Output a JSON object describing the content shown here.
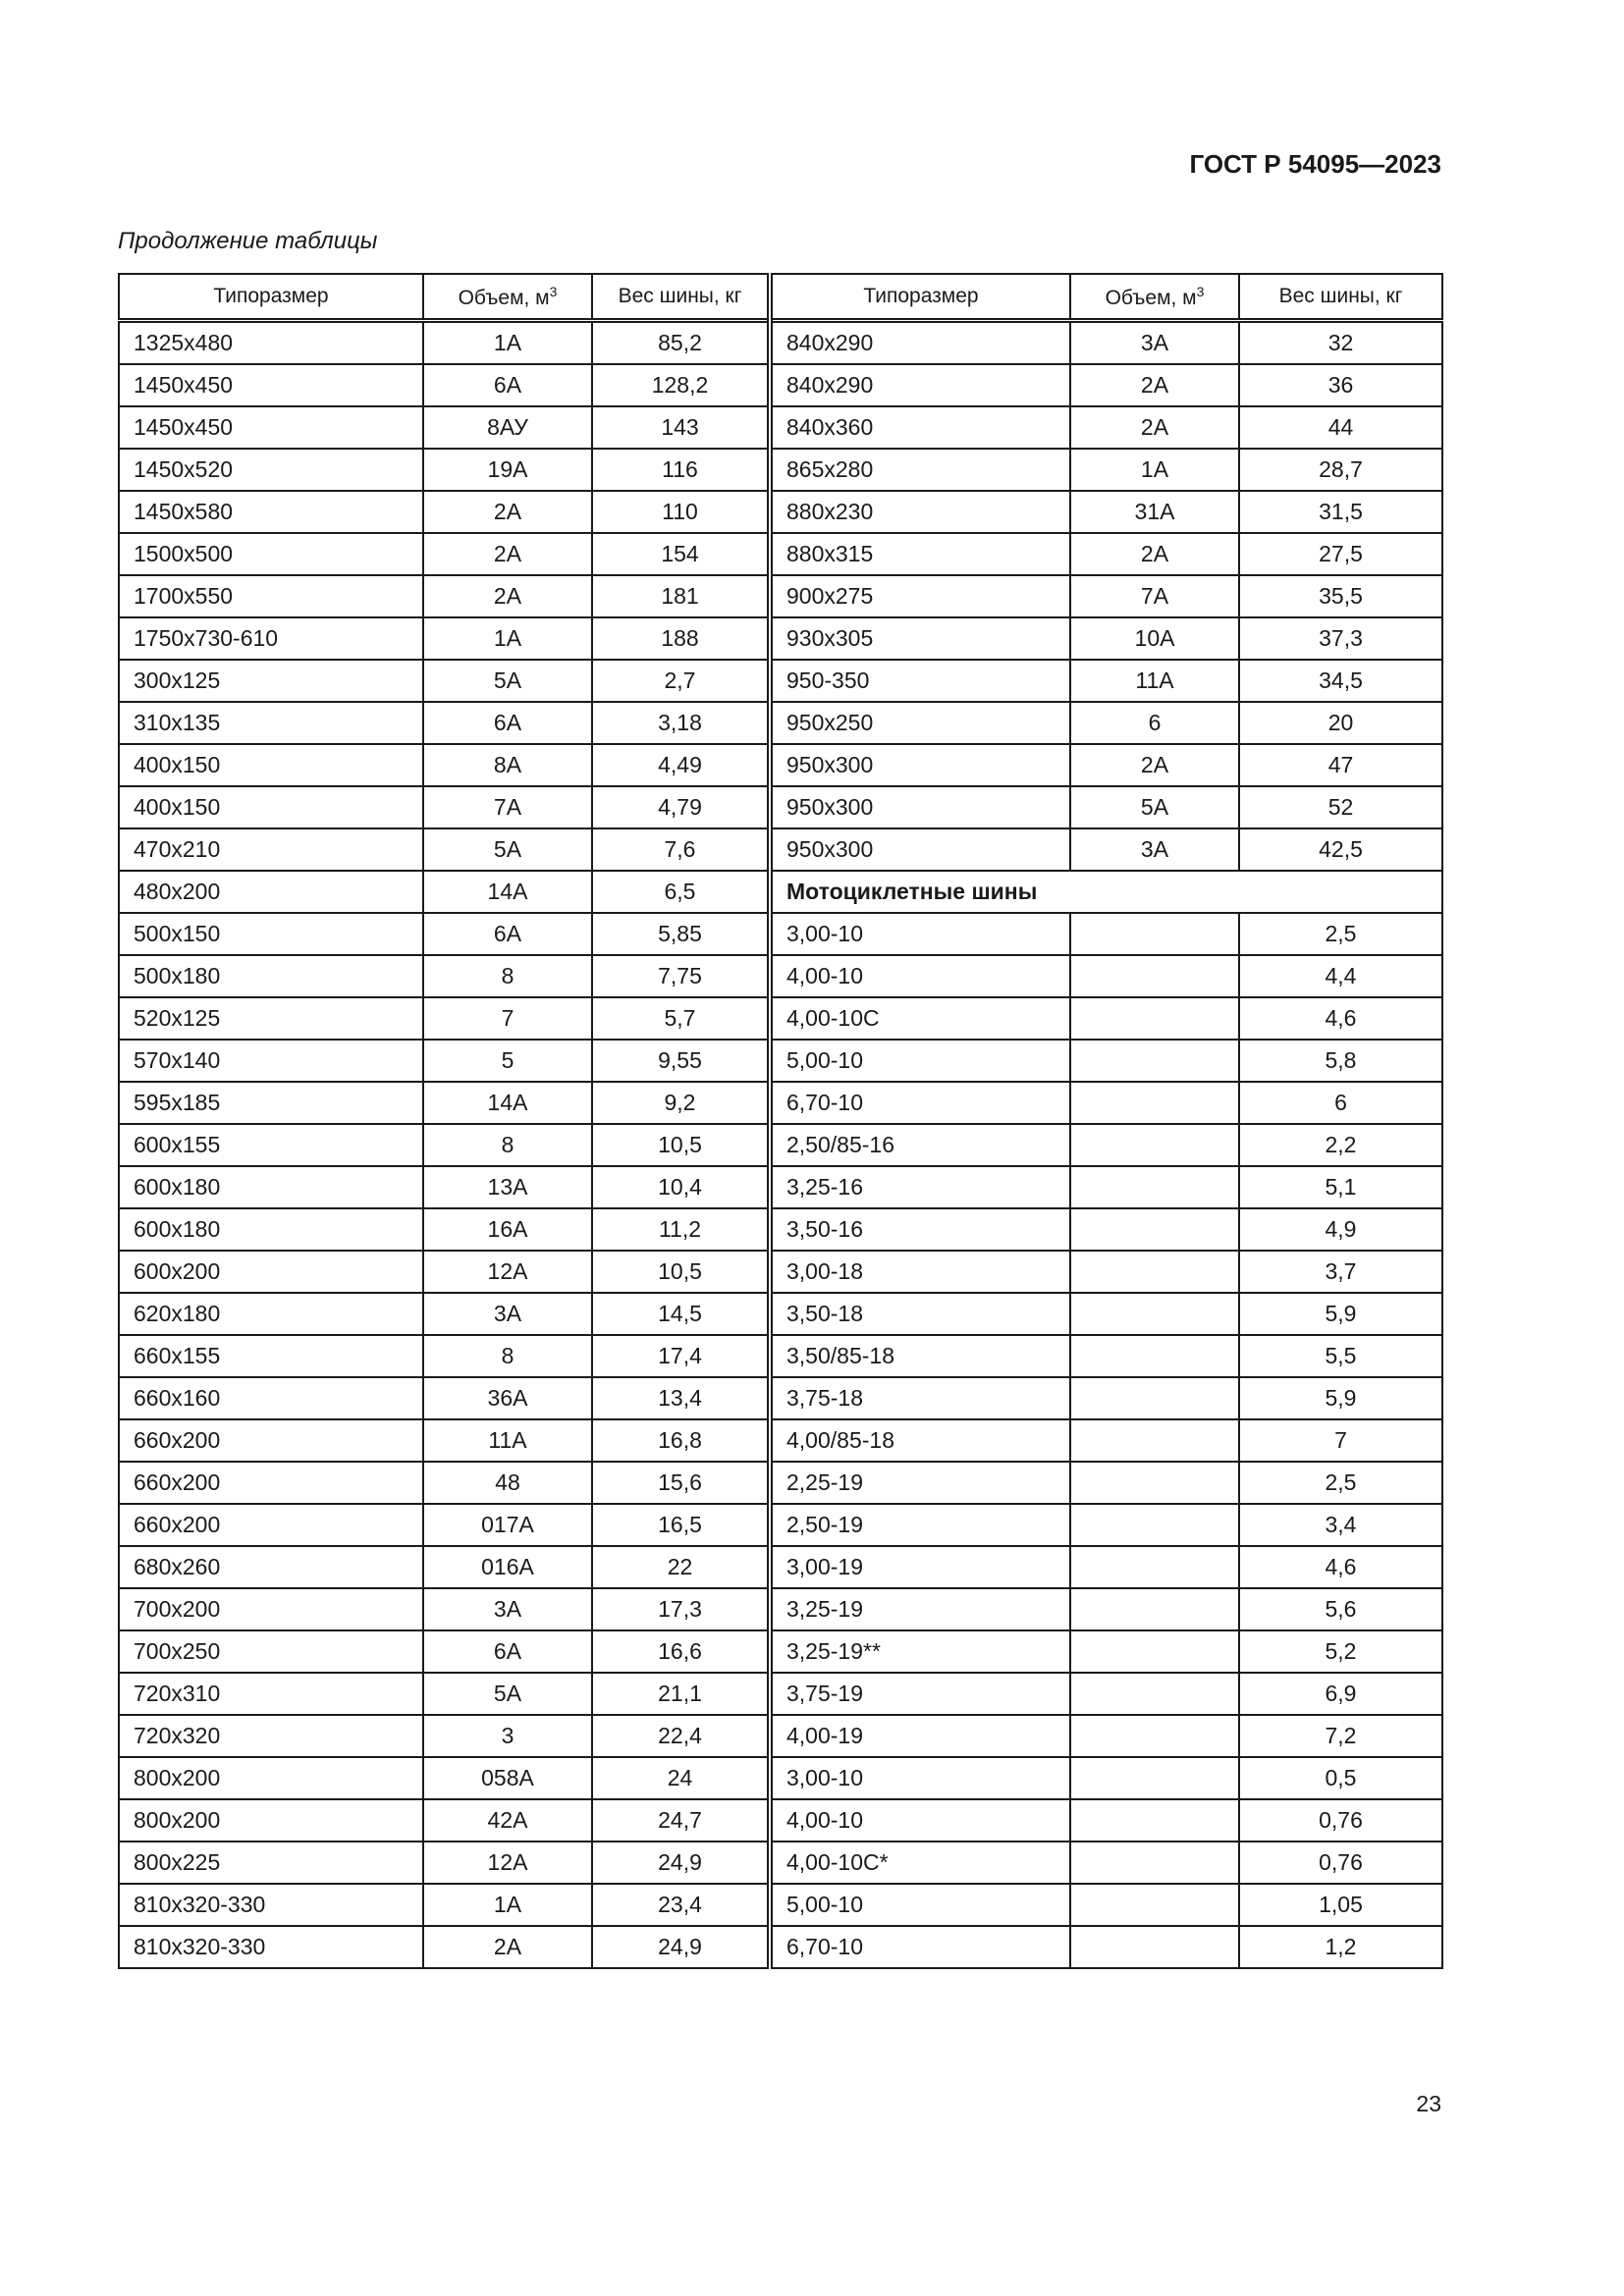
{
  "header": {
    "doc_code": "ГОСТ Р 54095—2023",
    "caption": "Продолжение таблицы"
  },
  "columns": {
    "size": "Типоразмер",
    "volume": "Объем, м",
    "volume_sup": "3",
    "weight": "Вес шины, кг"
  },
  "rows": [
    {
      "l": [
        "1325x480",
        "1А",
        "85,2"
      ],
      "r": [
        "840x290",
        "3А",
        "32"
      ]
    },
    {
      "l": [
        "1450x450",
        "6А",
        "128,2"
      ],
      "r": [
        "840x290",
        "2А",
        "36"
      ]
    },
    {
      "l": [
        "1450x450",
        "8АУ",
        "143"
      ],
      "r": [
        "840x360",
        "2А",
        "44"
      ]
    },
    {
      "l": [
        "1450x520",
        "19А",
        "116"
      ],
      "r": [
        "865x280",
        "1А",
        "28,7"
      ]
    },
    {
      "l": [
        "1450x580",
        "2А",
        "110"
      ],
      "r": [
        "880x230",
        "31А",
        "31,5"
      ]
    },
    {
      "l": [
        "1500x500",
        "2А",
        "154"
      ],
      "r": [
        "880x315",
        "2А",
        "27,5"
      ]
    },
    {
      "l": [
        "1700x550",
        "2А",
        "181"
      ],
      "r": [
        "900x275",
        "7А",
        "35,5"
      ]
    },
    {
      "l": [
        "1750x730-610",
        "1А",
        "188"
      ],
      "r": [
        "930x305",
        "10А",
        "37,3"
      ]
    },
    {
      "l": [
        "300x125",
        "5А",
        "2,7"
      ],
      "r": [
        "950-350",
        "11А",
        "34,5"
      ]
    },
    {
      "l": [
        "310x135",
        "6А",
        "3,18"
      ],
      "r": [
        "950x250",
        "6",
        "20"
      ]
    },
    {
      "l": [
        "400x150",
        "8А",
        "4,49"
      ],
      "r": [
        "950x300",
        "2А",
        "47"
      ]
    },
    {
      "l": [
        "400x150",
        "7А",
        "4,79"
      ],
      "r": [
        "950x300",
        "5А",
        "52"
      ]
    },
    {
      "l": [
        "470x210",
        "5А",
        "7,6"
      ],
      "r": [
        "950x300",
        "3А",
        "42,5"
      ]
    },
    {
      "l": [
        "480x200",
        "14А",
        "6,5"
      ],
      "section": "Мотоциклетные шины"
    },
    {
      "l": [
        "500x150",
        "6А",
        "5,85"
      ],
      "r": [
        "3,00-10",
        "",
        "2,5"
      ]
    },
    {
      "l": [
        "500x180",
        "8",
        "7,75"
      ],
      "r": [
        "4,00-10",
        "",
        "4,4"
      ]
    },
    {
      "l": [
        "520x125",
        "7",
        "5,7"
      ],
      "r": [
        "4,00-10С",
        "",
        "4,6"
      ]
    },
    {
      "l": [
        "570x140",
        "5",
        "9,55"
      ],
      "r": [
        "5,00-10",
        "",
        "5,8"
      ]
    },
    {
      "l": [
        "595x185",
        "14А",
        "9,2"
      ],
      "r": [
        "6,70-10",
        "",
        "6"
      ]
    },
    {
      "l": [
        "600x155",
        "8",
        "10,5"
      ],
      "r": [
        "2,50/85-16",
        "",
        "2,2"
      ]
    },
    {
      "l": [
        "600x180",
        "13А",
        "10,4"
      ],
      "r": [
        "3,25-16",
        "",
        "5,1"
      ]
    },
    {
      "l": [
        "600x180",
        "16А",
        "11,2"
      ],
      "r": [
        "3,50-16",
        "",
        "4,9"
      ]
    },
    {
      "l": [
        "600x200",
        "12А",
        "10,5"
      ],
      "r": [
        "3,00-18",
        "",
        "3,7"
      ]
    },
    {
      "l": [
        "620x180",
        "3А",
        "14,5"
      ],
      "r": [
        "3,50-18",
        "",
        "5,9"
      ]
    },
    {
      "l": [
        "660x155",
        "8",
        "17,4"
      ],
      "r": [
        "3,50/85-18",
        "",
        "5,5"
      ]
    },
    {
      "l": [
        "660x160",
        "36А",
        "13,4"
      ],
      "r": [
        "3,75-18",
        "",
        "5,9"
      ]
    },
    {
      "l": [
        "660x200",
        "11А",
        "16,8"
      ],
      "r": [
        "4,00/85-18",
        "",
        "7"
      ]
    },
    {
      "l": [
        "660x200",
        "48",
        "15,6"
      ],
      "r": [
        "2,25-19",
        "",
        "2,5"
      ]
    },
    {
      "l": [
        "660x200",
        "017А",
        "16,5"
      ],
      "r": [
        "2,50-19",
        "",
        "3,4"
      ]
    },
    {
      "l": [
        "680x260",
        "016А",
        "22"
      ],
      "r": [
        "3,00-19",
        "",
        "4,6"
      ]
    },
    {
      "l": [
        "700x200",
        "3А",
        "17,3"
      ],
      "r": [
        "3,25-19",
        "",
        "5,6"
      ]
    },
    {
      "l": [
        "700x250",
        "6А",
        "16,6"
      ],
      "r": [
        "3,25-19**",
        "",
        "5,2"
      ]
    },
    {
      "l": [
        "720x310",
        "5А",
        "21,1"
      ],
      "r": [
        "3,75-19",
        "",
        "6,9"
      ]
    },
    {
      "l": [
        "720x320",
        "3",
        "22,4"
      ],
      "r": [
        "4,00-19",
        "",
        "7,2"
      ]
    },
    {
      "l": [
        "800x200",
        "058А",
        "24"
      ],
      "r": [
        "3,00-10",
        "",
        "0,5"
      ]
    },
    {
      "l": [
        "800x200",
        "42А",
        "24,7"
      ],
      "r": [
        "4,00-10",
        "",
        "0,76"
      ]
    },
    {
      "l": [
        "800x225",
        "12А",
        "24,9"
      ],
      "r": [
        "4,00-10С*",
        "",
        "0,76"
      ]
    },
    {
      "l": [
        "810x320-330",
        "1А",
        "23,4"
      ],
      "r": [
        "5,00-10",
        "",
        "1,05"
      ]
    },
    {
      "l": [
        "810x320-330",
        "2А",
        "24,9"
      ],
      "r": [
        "6,70-10",
        "",
        "1,2"
      ]
    }
  ],
  "footer": {
    "page_number": "23"
  }
}
